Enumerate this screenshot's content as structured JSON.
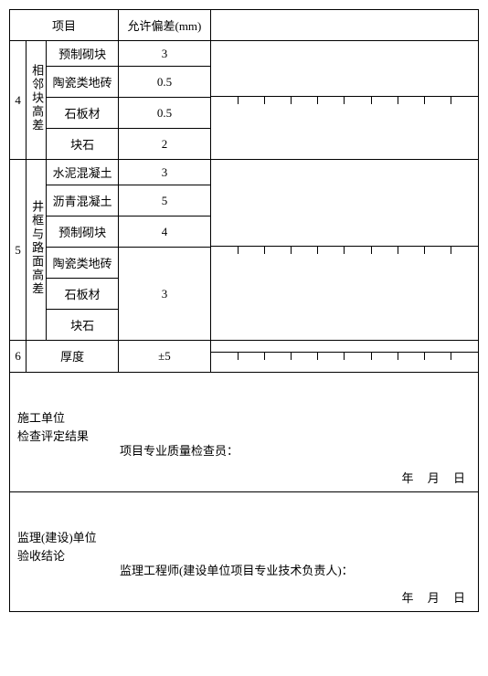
{
  "header": {
    "item_col": "项目",
    "tol_col": "允许偏差(mm)"
  },
  "groups": [
    {
      "num": "4",
      "title": "相邻块高差",
      "rows": [
        {
          "item": "预制砌块",
          "tol": "3"
        },
        {
          "item": "陶瓷类地砖",
          "tol": "0.5"
        },
        {
          "item": "石板材",
          "tol": "0.5"
        },
        {
          "item": "块石",
          "tol": "2"
        }
      ]
    },
    {
      "num": "5",
      "title": "井框与路面高差",
      "rows": [
        {
          "item": "水泥混凝土",
          "tol": "3"
        },
        {
          "item": "沥青混凝土",
          "tol": "5"
        },
        {
          "item": "预制砌块",
          "tol": "4"
        },
        {
          "item": "陶瓷类地砖",
          "tol": ""
        },
        {
          "item": "石板材",
          "tol": "3"
        },
        {
          "item": "块石",
          "tol": ""
        }
      ],
      "merged_tol_3": "3"
    },
    {
      "num": "6",
      "title": "厚度",
      "tol": "±5"
    }
  ],
  "blocks": {
    "construction": {
      "left1": "施工单位",
      "left2": "检查评定结果",
      "sig": "项目专业质量检查员：",
      "date": "年 月 日"
    },
    "supervision": {
      "left1": "监理(建设)单位",
      "left2": "验收结论",
      "sig": "监理工程师(建设单位项目专业技术负责人)：",
      "date": "年 月 日"
    }
  },
  "style": {
    "grid_cols": 10,
    "border_color": "#000000",
    "background": "#ffffff",
    "font_family": "SimSun"
  }
}
